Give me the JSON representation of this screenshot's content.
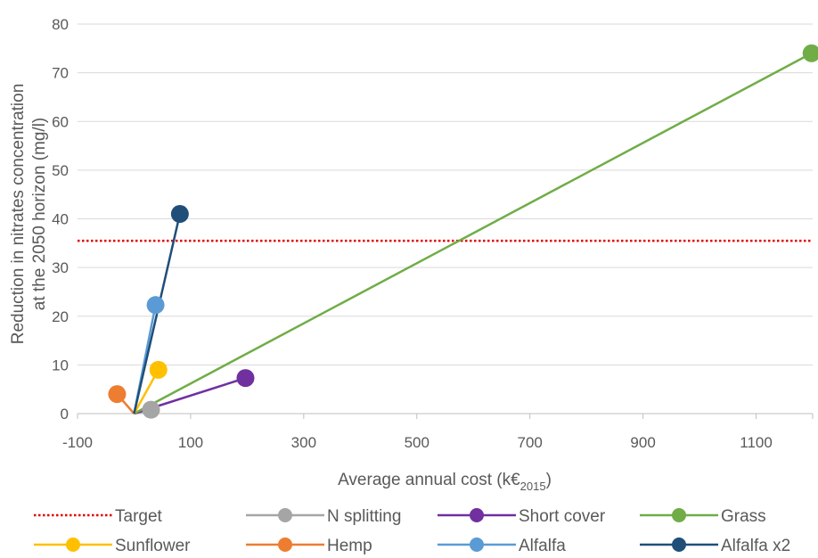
{
  "chart_data": {
    "type": "scatter",
    "xlabel": "Average annual cost (k€",
    "xlabel_sub": "2015",
    "xlabel_end": ")",
    "ylabel_line1": "Reduction in nitrates concentration",
    "ylabel_line2": "at the 2050 horizon  (mg/l)",
    "xlim": [
      -100,
      1200
    ],
    "ylim": [
      0,
      80
    ],
    "x_ticks": [
      -100,
      100,
      300,
      500,
      700,
      900,
      1100
    ],
    "y_ticks": [
      0,
      10,
      20,
      30,
      40,
      50,
      60,
      70,
      80
    ],
    "grid": "horizontal",
    "legend_position": "bottom",
    "target": {
      "name": "Target",
      "y": 35.5,
      "color": "#e00000"
    },
    "series": [
      {
        "name": "N splitting",
        "color": "#a5a5a5",
        "x": [
          0,
          30
        ],
        "y": [
          0,
          0.8
        ]
      },
      {
        "name": "Short cover",
        "color": "#7030a0",
        "x": [
          0,
          197
        ],
        "y": [
          0,
          7.3
        ]
      },
      {
        "name": "Grass",
        "color": "#70ad47",
        "x": [
          0,
          1198
        ],
        "y": [
          0,
          74
        ]
      },
      {
        "name": "Sunflower",
        "color": "#ffc000",
        "x": [
          0,
          43
        ],
        "y": [
          0,
          9
        ]
      },
      {
        "name": "Hemp",
        "color": "#ed7d31",
        "x": [
          0,
          -30
        ],
        "y": [
          0,
          4
        ]
      },
      {
        "name": "Alfalfa",
        "color": "#5b9bd5",
        "x": [
          0,
          38
        ],
        "y": [
          0,
          22.3
        ]
      },
      {
        "name": "Alfalfa x2",
        "color": "#1f4e79",
        "x": [
          0,
          81
        ],
        "y": [
          0,
          41
        ]
      }
    ]
  }
}
